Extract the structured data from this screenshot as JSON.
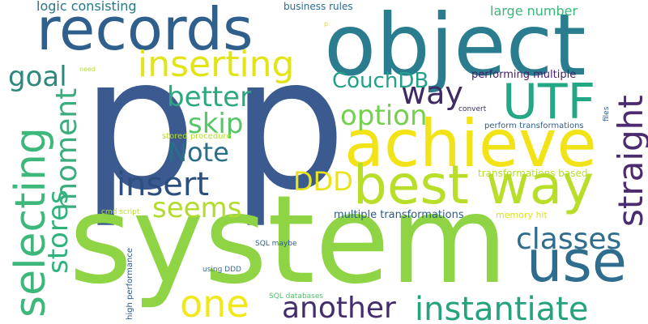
{
  "words": [
    {
      "id": "w-p1",
      "text": "p",
      "color": "#3b5a8f"
    },
    {
      "id": "w-p2",
      "text": "p",
      "color": "#3b5a8f"
    },
    {
      "id": "w-system",
      "text": "system",
      "color": "#8fd444"
    },
    {
      "id": "w-object",
      "text": "object",
      "color": "#2a7d8e"
    },
    {
      "id": "w-records",
      "text": "records",
      "color": "#2f5f8c"
    },
    {
      "id": "w-achieve",
      "text": "achieve",
      "color": "#f2e316"
    },
    {
      "id": "w-best-way",
      "text": "best way",
      "color": "#b8de29"
    },
    {
      "id": "w-use",
      "text": "use",
      "color": "#2f6d8e"
    },
    {
      "id": "w-utf",
      "text": "UTF",
      "color": "#22a884"
    },
    {
      "id": "w-selecting",
      "text": "selecting",
      "color": "#3db87a"
    },
    {
      "id": "w-inserting",
      "text": "inserting",
      "color": "#e2e418"
    },
    {
      "id": "w-instantiate",
      "text": "instantiate",
      "color": "#25a37f"
    },
    {
      "id": "w-another",
      "text": "another",
      "color": "#432d6f"
    },
    {
      "id": "w-one",
      "text": "one",
      "color": "#f0e81d"
    },
    {
      "id": "w-classes",
      "text": "classes",
      "color": "#2f6d8e"
    },
    {
      "id": "w-straight",
      "text": "straight",
      "color": "#4a2c6f"
    },
    {
      "id": "w-insert",
      "text": "insert",
      "color": "#2c4f7f"
    },
    {
      "id": "w-moment",
      "text": "moment",
      "color": "#3cad7d"
    },
    {
      "id": "w-stores",
      "text": "stores",
      "color": "#2eb37c"
    },
    {
      "id": "w-note",
      "text": "Note",
      "color": "#2a6f8a"
    },
    {
      "id": "w-skip",
      "text": "skip",
      "color": "#56c667"
    },
    {
      "id": "w-better",
      "text": "better",
      "color": "#2ca87f"
    },
    {
      "id": "w-way",
      "text": "way",
      "color": "#3f2a66"
    },
    {
      "id": "w-option",
      "text": "option",
      "color": "#76d04f"
    },
    {
      "id": "w-ddd",
      "text": "DDD",
      "color": "#e8e31a"
    },
    {
      "id": "w-seems",
      "text": "seems",
      "color": "#b2dc2d"
    },
    {
      "id": "w-couchdb",
      "text": "CouchDB",
      "color": "#23a08a"
    },
    {
      "id": "w-goal",
      "text": "goal",
      "color": "#2d8a7a"
    },
    {
      "id": "w-logic-consisting",
      "text": "logic consisting",
      "color": "#27778a"
    },
    {
      "id": "w-large-number",
      "text": "large number",
      "color": "#3ab67a"
    },
    {
      "id": "w-business-rules",
      "text": "business rules",
      "color": "#2e6c8c"
    },
    {
      "id": "w-performing-multiple",
      "text": "performing multiple",
      "color": "#46206c"
    },
    {
      "id": "w-multiple-transformations",
      "text": "multiple transformations",
      "color": "#2c5c87"
    },
    {
      "id": "w-transformations-based",
      "text": "transformations based",
      "color": "#b5de2b"
    },
    {
      "id": "w-memory-hit",
      "text": "memory hit",
      "color": "#d9e21c"
    },
    {
      "id": "w-perform-transformations",
      "text": "perform transformations",
      "color": "#35618d"
    },
    {
      "id": "w-stored-procedure",
      "text": "stored procedure",
      "color": "#b5de2b"
    },
    {
      "id": "w-high-performance",
      "text": "high performance",
      "color": "#2f5a8c"
    },
    {
      "id": "w-sql-maybe",
      "text": "SQL maybe",
      "color": "#2f5f8c"
    },
    {
      "id": "w-using-ddd",
      "text": "using DDD",
      "color": "#3d6d95"
    },
    {
      "id": "w-sql-databases",
      "text": "SQL databases",
      "color": "#4dc16c"
    },
    {
      "id": "w-cmd-script",
      "text": "cmd script",
      "color": "#b5de2b"
    },
    {
      "id": "w-convert",
      "text": "convert",
      "color": "#3b2e6a"
    },
    {
      "id": "w-files",
      "text": "files",
      "color": "#35618d"
    },
    {
      "id": "w-need",
      "text": "need",
      "color": "#b5de2b"
    },
    {
      "id": "w-p-small",
      "text": "p",
      "color": "#d9e21c"
    }
  ]
}
